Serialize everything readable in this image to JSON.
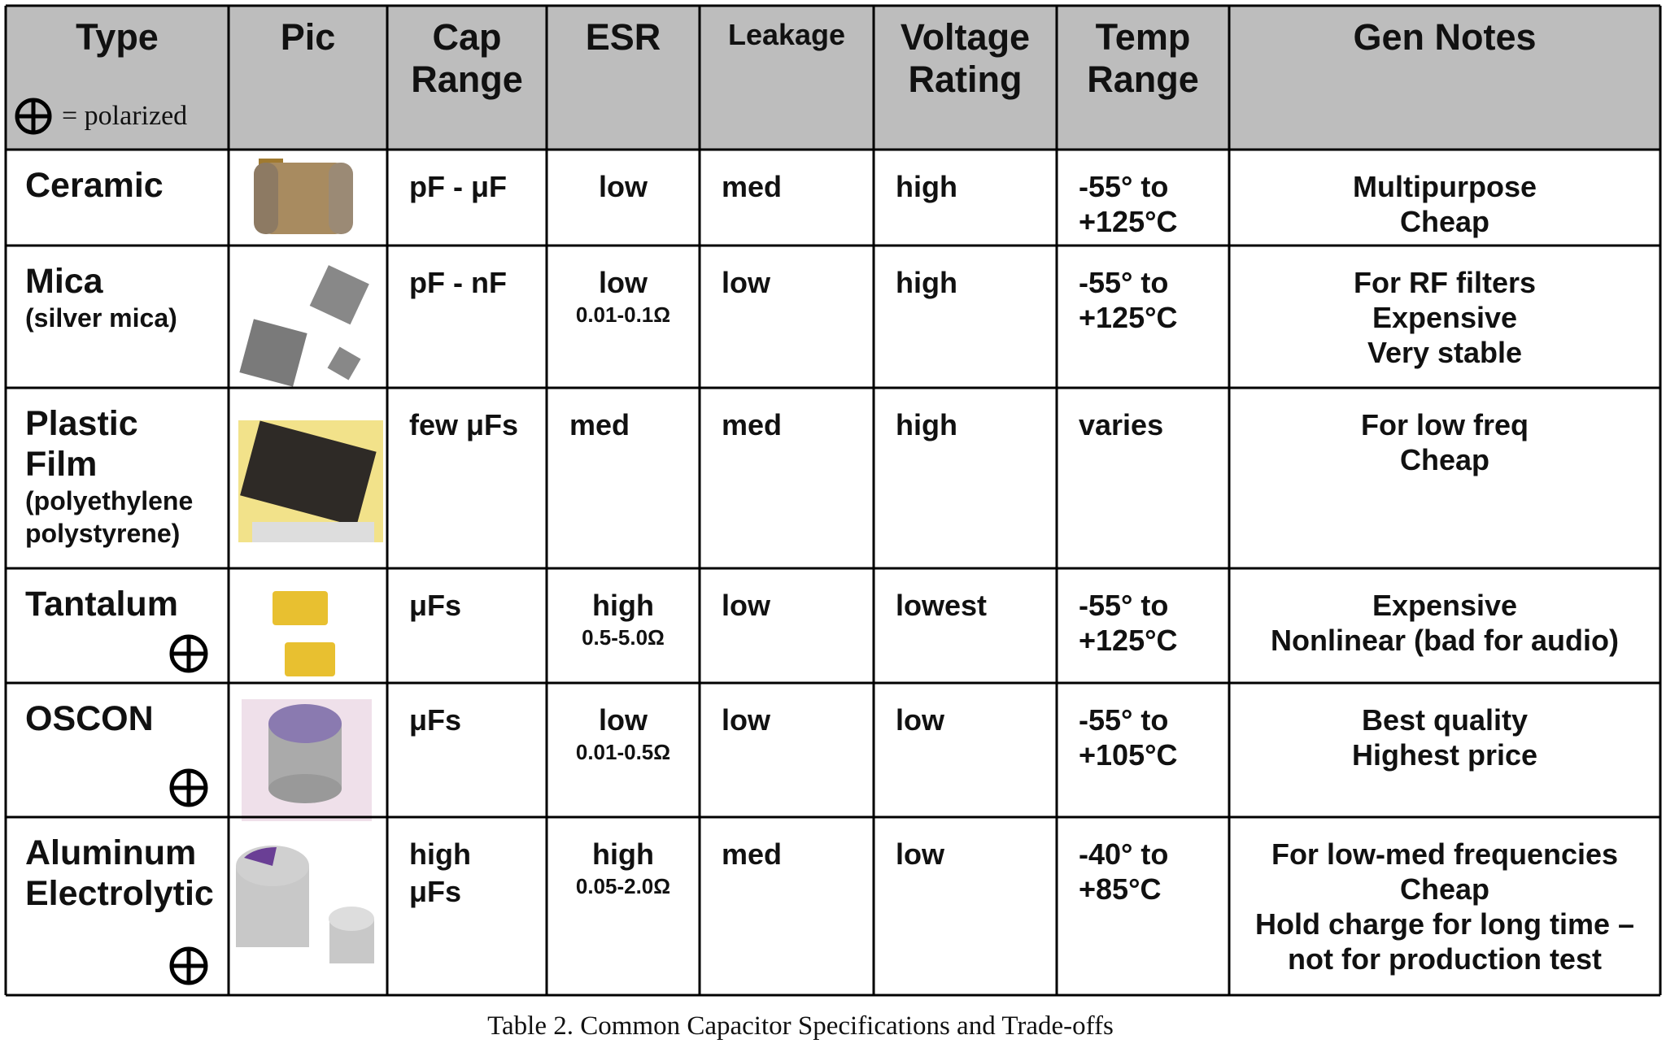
{
  "header": {
    "cells": [
      [
        "Type"
      ],
      [
        "Pic"
      ],
      [
        "Cap",
        "Range"
      ],
      [
        "ESR"
      ],
      [
        "Leakage"
      ],
      [
        "Voltage",
        "Rating"
      ],
      [
        "Temp",
        "Range"
      ],
      [
        "Gen Notes"
      ]
    ],
    "legend": "= polarized"
  },
  "rows": [
    {
      "type": [
        "Ceramic"
      ],
      "cap": [
        "pF - μF"
      ],
      "esr": "low",
      "leakage": "med",
      "voltage": "high",
      "temp": [
        "-55° to",
        "+125°C"
      ],
      "notes": [
        "Multipurpose",
        "Cheap"
      ],
      "polarized": false
    },
    {
      "type": [
        "Mica"
      ],
      "type_sub": [
        "(silver mica)"
      ],
      "cap": [
        "pF - nF"
      ],
      "esr": "low",
      "esr_detail": "0.01-0.1Ω",
      "leakage": "low",
      "voltage": "high",
      "temp": [
        "-55° to",
        "+125°C"
      ],
      "notes": [
        "For RF filters",
        "Expensive",
        "Very stable"
      ],
      "polarized": false
    },
    {
      "type": [
        "Plastic",
        "Film"
      ],
      "type_sub": [
        "(polyethylene",
        "polystyrene)"
      ],
      "cap": [
        "few μFs"
      ],
      "esr": "med",
      "leakage": "med",
      "voltage": "high",
      "temp": [
        "varies"
      ],
      "notes": [
        "For low freq",
        "Cheap"
      ],
      "polarized": false
    },
    {
      "type": [
        "Tantalum"
      ],
      "cap": [
        "μFs"
      ],
      "esr": "high",
      "esr_detail": "0.5-5.0Ω",
      "leakage": "low",
      "voltage": "lowest",
      "temp": [
        "-55° to",
        "+125°C"
      ],
      "notes": [
        "Expensive",
        "Nonlinear (bad for audio)"
      ],
      "polarized": true
    },
    {
      "type": [
        "OSCON"
      ],
      "cap": [
        "μFs"
      ],
      "esr": "low",
      "esr_detail": "0.01-0.5Ω",
      "leakage": "low",
      "voltage": "low",
      "temp": [
        "-55° to",
        "+105°C"
      ],
      "notes": [
        "Best quality",
        "Highest price"
      ],
      "polarized": true
    },
    {
      "type": [
        "Aluminum",
        "Electrolytic"
      ],
      "cap": [
        "high",
        "μFs"
      ],
      "esr": "high",
      "esr_detail": "0.05-2.0Ω",
      "leakage": "med",
      "voltage": "low",
      "temp": [
        "-40° to",
        "+85°C"
      ],
      "notes": [
        "For low-med frequencies",
        "Cheap",
        "Hold charge for long time –",
        "not for  production test"
      ],
      "polarized": true
    }
  ],
  "caption": "Table 2.  Common Capacitor Specifications and Trade-offs"
}
